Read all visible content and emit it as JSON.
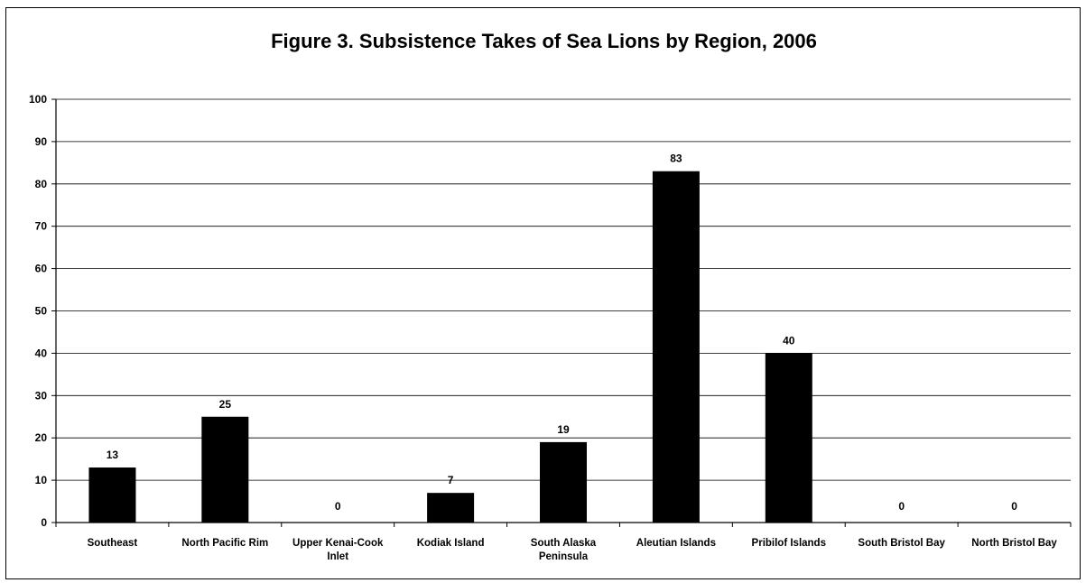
{
  "chart_data": {
    "type": "bar",
    "title": "Figure 3.  Subsistence Takes of Sea Lions by Region, 2006",
    "xlabel": "",
    "ylabel": "",
    "ylim": [
      0,
      100
    ],
    "yticks": [
      "0",
      "10",
      "20",
      "30",
      "40",
      "50",
      "60",
      "70",
      "80",
      "90",
      "100"
    ],
    "categories": [
      [
        "Southeast"
      ],
      [
        "North Pacific Rim"
      ],
      [
        "Upper Kenai-Cook",
        "Inlet"
      ],
      [
        "Kodiak Island"
      ],
      [
        "South Alaska",
        "Peninsula"
      ],
      [
        "Aleutian Islands"
      ],
      [
        "Pribilof Islands"
      ],
      [
        "South Bristol Bay"
      ],
      [
        "North Bristol Bay"
      ]
    ],
    "values": [
      13,
      25,
      0,
      7,
      19,
      83,
      40,
      0,
      0
    ],
    "data_labels": [
      "13",
      "25",
      "0",
      "7",
      "19",
      "83",
      "40",
      "0",
      "0"
    ],
    "grid": true,
    "legend": "none",
    "bar_color": "#000000"
  }
}
